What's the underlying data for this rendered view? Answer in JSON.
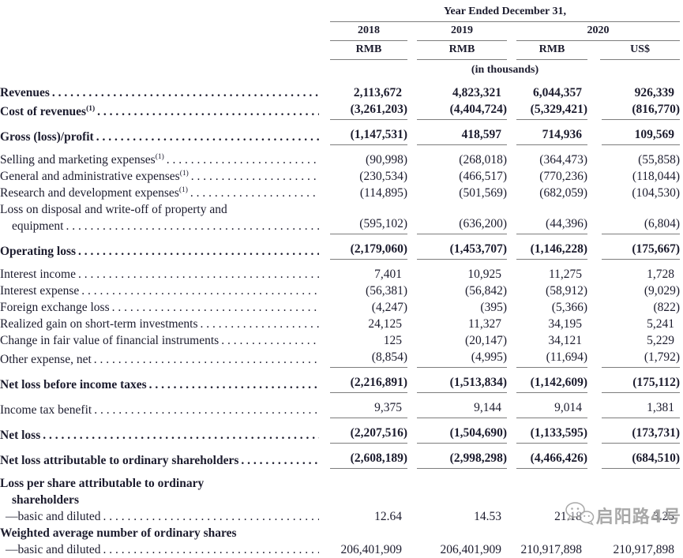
{
  "header": {
    "title": "Year Ended December 31,",
    "years": [
      "2018",
      "2019",
      "2020"
    ],
    "currencies": [
      "RMB",
      "RMB",
      "RMB",
      "US$"
    ],
    "units": "(in thousands)"
  },
  "rows": [
    {
      "lines": [
        "Revenues"
      ],
      "sup": "",
      "bold": true,
      "dots": true,
      "rule": false,
      "gap": false,
      "indent": false,
      "values": [
        "2,113,672",
        "4,823,321",
        "6,044,357",
        "926,339"
      ]
    },
    {
      "lines": [
        "Cost of revenues"
      ],
      "sup": "(1)",
      "bold": true,
      "dots": true,
      "rule": true,
      "gap": false,
      "indent": false,
      "values": [
        "(3,261,203)",
        "(4,404,724)",
        "(5,329,421)",
        "(816,770)"
      ]
    },
    {
      "lines": [
        "Gross (loss)/profit"
      ],
      "sup": "",
      "bold": true,
      "dots": true,
      "rule": true,
      "gap": true,
      "indent": false,
      "values": [
        "(1,147,531)",
        "418,597",
        "714,936",
        "109,569"
      ]
    },
    {
      "lines": [
        "Selling and marketing expenses"
      ],
      "sup": "(1)",
      "bold": false,
      "dots": true,
      "rule": false,
      "gap": true,
      "indent": false,
      "values": [
        "(90,998)",
        "(268,018)",
        "(364,473)",
        "(55,858)"
      ]
    },
    {
      "lines": [
        "General and administrative expenses"
      ],
      "sup": "(1)",
      "bold": false,
      "dots": true,
      "rule": false,
      "gap": false,
      "indent": false,
      "values": [
        "(230,534)",
        "(466,517)",
        "(770,236)",
        "(118,044)"
      ]
    },
    {
      "lines": [
        "Research and development expenses"
      ],
      "sup": "(1)",
      "bold": false,
      "dots": true,
      "rule": false,
      "gap": false,
      "indent": false,
      "values": [
        "(114,895)",
        "(501,569)",
        "(682,059)",
        "(104,530)"
      ]
    },
    {
      "lines": [
        "Loss on disposal and write-off of property and",
        "equipment"
      ],
      "sup": "",
      "bold": false,
      "dots": true,
      "rule": true,
      "gap": false,
      "indent": false,
      "values": [
        "(595,102)",
        "(636,200)",
        "(44,396)",
        "(6,804)"
      ]
    },
    {
      "lines": [
        "Operating loss"
      ],
      "sup": "",
      "bold": true,
      "dots": true,
      "rule": true,
      "gap": true,
      "indent": false,
      "values": [
        "(2,179,060)",
        "(1,453,707)",
        "(1,146,228)",
        "(175,667)"
      ]
    },
    {
      "lines": [
        "Interest income"
      ],
      "sup": "",
      "bold": false,
      "dots": true,
      "rule": false,
      "gap": true,
      "indent": false,
      "values": [
        "7,401",
        "10,925",
        "11,275",
        "1,728"
      ]
    },
    {
      "lines": [
        "Interest expense"
      ],
      "sup": "",
      "bold": false,
      "dots": true,
      "rule": false,
      "gap": false,
      "indent": false,
      "values": [
        "(56,381)",
        "(56,842)",
        "(58,912)",
        "(9,029)"
      ]
    },
    {
      "lines": [
        "Foreign exchange loss"
      ],
      "sup": "",
      "bold": false,
      "dots": true,
      "rule": false,
      "gap": false,
      "indent": false,
      "values": [
        "(4,247)",
        "(395)",
        "(5,366)",
        "(822)"
      ]
    },
    {
      "lines": [
        "Realized gain on short-term investments"
      ],
      "sup": "",
      "bold": false,
      "dots": true,
      "rule": false,
      "gap": false,
      "indent": false,
      "values": [
        "24,125",
        "11,327",
        "34,195",
        "5,241"
      ]
    },
    {
      "lines": [
        "Change in fair value of financial instruments"
      ],
      "sup": "",
      "bold": false,
      "dots": true,
      "rule": false,
      "gap": false,
      "indent": false,
      "values": [
        "125",
        "(20,147)",
        "34,121",
        "5,229"
      ]
    },
    {
      "lines": [
        "Other expense, net"
      ],
      "sup": "",
      "bold": false,
      "dots": true,
      "rule": true,
      "gap": false,
      "indent": false,
      "values": [
        "(8,854)",
        "(4,995)",
        "(11,694)",
        "(1,792)"
      ]
    },
    {
      "lines": [
        "Net loss before income taxes"
      ],
      "sup": "",
      "bold": true,
      "dots": true,
      "rule": true,
      "gap": true,
      "indent": false,
      "values": [
        "(2,216,891)",
        "(1,513,834)",
        "(1,142,609)",
        "(175,112)"
      ]
    },
    {
      "lines": [
        "Income tax benefit"
      ],
      "sup": "",
      "bold": false,
      "dots": true,
      "rule": true,
      "gap": true,
      "indent": false,
      "values": [
        "9,375",
        "9,144",
        "9,014",
        "1,381"
      ]
    },
    {
      "lines": [
        "Net loss"
      ],
      "sup": "",
      "bold": true,
      "dots": true,
      "rule": true,
      "gap": true,
      "indent": false,
      "values": [
        "(2,207,516)",
        "(1,504,690)",
        "(1,133,595)",
        "(173,731)"
      ]
    },
    {
      "lines": [
        "Net loss attributable to ordinary shareholders"
      ],
      "sup": "",
      "bold": true,
      "dots": true,
      "rule": true,
      "gap": true,
      "indent": false,
      "values": [
        "(2,608,189)",
        "(2,998,298)",
        "(4,466,426)",
        "(684,510)"
      ]
    },
    {
      "lines": [
        "Loss per share attributable to ordinary",
        "shareholders"
      ],
      "sup": "",
      "bold": true,
      "dots": false,
      "rule": false,
      "gap": true,
      "indent": false,
      "values": [
        "",
        "",
        "",
        ""
      ]
    },
    {
      "lines": [
        "—basic and diluted"
      ],
      "sup": "",
      "bold": false,
      "dots": true,
      "rule": false,
      "gap": false,
      "indent": true,
      "values": [
        "12.64",
        "14.53",
        "21.18",
        "3.25"
      ]
    },
    {
      "lines": [
        "Weighted average number of ordinary shares"
      ],
      "sup": "",
      "bold": true,
      "dots": false,
      "rule": false,
      "gap": false,
      "indent": false,
      "values": [
        "",
        "",
        "",
        ""
      ]
    },
    {
      "lines": [
        "—basic and diluted"
      ],
      "sup": "",
      "bold": false,
      "dots": true,
      "rule": false,
      "gap": false,
      "indent": true,
      "values": [
        "206,401,909",
        "206,401,909",
        "210,917,898",
        "210,917,898"
      ]
    }
  ],
  "watermark": {
    "icon": "wechat-icon",
    "text": "启阳路4号"
  },
  "colors": {
    "text": "#1c1c2e",
    "rule": "#7d7d7d",
    "watermark": "#9a9a9a",
    "background": "#ffffff"
  }
}
